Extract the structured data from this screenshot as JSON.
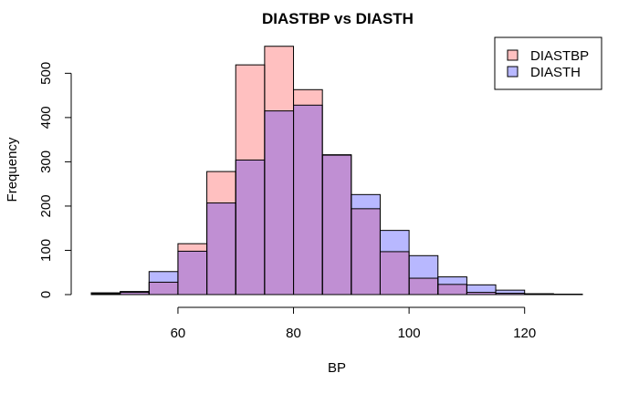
{
  "chart_data": {
    "type": "bar",
    "title": "DIASTBP vs DIASTH",
    "xlabel": "BP",
    "ylabel": "Frequency",
    "xlim": [
      45,
      130
    ],
    "ylim": [
      0,
      560
    ],
    "x_ticks": [
      60,
      80,
      100,
      120
    ],
    "y_ticks": [
      0,
      100,
      200,
      300,
      400,
      500
    ],
    "grid": false,
    "legend_position": "top-right",
    "overlap_color": "#c08fd3",
    "series": [
      {
        "name": "DIASTBP",
        "color": "#ffc0c0",
        "bins": [
          {
            "x0": 45,
            "x1": 50,
            "value": 2
          },
          {
            "x0": 50,
            "x1": 55,
            "value": 5
          },
          {
            "x0": 55,
            "x1": 60,
            "value": 28
          },
          {
            "x0": 60,
            "x1": 65,
            "value": 115
          },
          {
            "x0": 65,
            "x1": 70,
            "value": 278
          },
          {
            "x0": 70,
            "x1": 75,
            "value": 519
          },
          {
            "x0": 75,
            "x1": 80,
            "value": 561
          },
          {
            "x0": 80,
            "x1": 85,
            "value": 463
          },
          {
            "x0": 85,
            "x1": 90,
            "value": 315
          },
          {
            "x0": 90,
            "x1": 95,
            "value": 194
          },
          {
            "x0": 95,
            "x1": 100,
            "value": 97
          },
          {
            "x0": 100,
            "x1": 105,
            "value": 37
          },
          {
            "x0": 105,
            "x1": 110,
            "value": 23
          },
          {
            "x0": 110,
            "x1": 115,
            "value": 5
          },
          {
            "x0": 115,
            "x1": 120,
            "value": 3
          },
          {
            "x0": 120,
            "x1": 125,
            "value": 1
          },
          {
            "x0": 125,
            "x1": 130,
            "value": 0
          }
        ]
      },
      {
        "name": "DIASTH",
        "color": "#b8b8ff",
        "bins": [
          {
            "x0": 45,
            "x1": 50,
            "value": 4
          },
          {
            "x0": 50,
            "x1": 55,
            "value": 7
          },
          {
            "x0": 55,
            "x1": 60,
            "value": 52
          },
          {
            "x0": 60,
            "x1": 65,
            "value": 98
          },
          {
            "x0": 65,
            "x1": 70,
            "value": 207
          },
          {
            "x0": 70,
            "x1": 75,
            "value": 304
          },
          {
            "x0": 75,
            "x1": 80,
            "value": 415
          },
          {
            "x0": 80,
            "x1": 85,
            "value": 428
          },
          {
            "x0": 85,
            "x1": 90,
            "value": 316
          },
          {
            "x0": 90,
            "x1": 95,
            "value": 226
          },
          {
            "x0": 95,
            "x1": 100,
            "value": 145
          },
          {
            "x0": 100,
            "x1": 105,
            "value": 88
          },
          {
            "x0": 105,
            "x1": 110,
            "value": 40
          },
          {
            "x0": 110,
            "x1": 115,
            "value": 22
          },
          {
            "x0": 115,
            "x1": 120,
            "value": 10
          },
          {
            "x0": 120,
            "x1": 125,
            "value": 2
          },
          {
            "x0": 125,
            "x1": 130,
            "value": 1
          }
        ]
      }
    ]
  }
}
